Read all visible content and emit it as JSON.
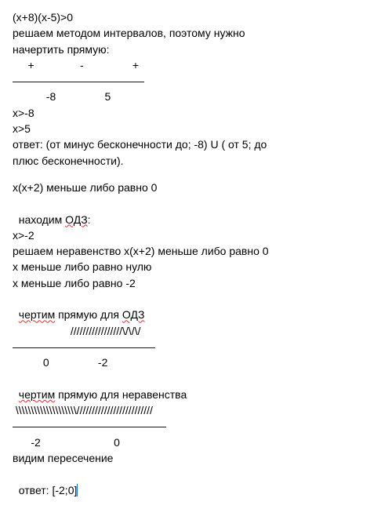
{
  "p1": {
    "l1": "(x+8)(x-5)>0",
    "l2": "решаем методом интервалов, поэтому нужно",
    "l3": "начертить прямую:",
    "l4": "     +               -                +",
    "l5": "————————————",
    "l6": "           -8                5",
    "l7": "x>-8",
    "l8": "x>5",
    "l9": "ответ: (от минус бесконечности до; -8) U ( от 5; до",
    "l10": "плюс бесконечности)."
  },
  "p2": {
    "l1": "x(x+2) меньше либо равно 0",
    "l2a": "находим ",
    "l2b": "ОДЗ",
    "l2c": ":",
    "l3": "x>-2",
    "l4": "решаем неравенство x(x+2) меньше либо равно 0",
    "l5": "x меньше либо равно нулю",
    "l6": "x меньше либо равно -2",
    "l7a": "чертим",
    "l7b": " прямую для ",
    "l7c": "ОДЗ",
    "l8": "                   /////////////////\\/\\/\\/",
    "l9": "—————————————",
    "l10": "          0                -2",
    "l11a": "чертим",
    "l11b": " прямую для неравенства",
    "l12": " \\\\\\\\\\\\\\\\\\\\\\\\\\\\\\\\\\\\\\\\/////////////////////////",
    "l13": "——————————————",
    "l14": "      -2                        0",
    "l15": "видим пересечение",
    "l16": "ответ: [-2;0]"
  }
}
